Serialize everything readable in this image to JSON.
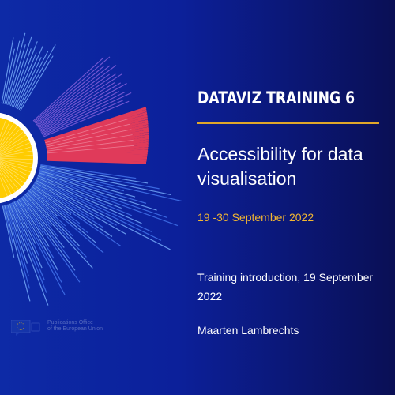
{
  "slide": {
    "series_label": "DATAVIZ TRAINING 6",
    "title": "Accessibility for data visualisation",
    "dates": "19 -30 September 2022",
    "intro": "Training introduction, 19 September 2022",
    "author": "Maarten Lambrechts"
  },
  "logo": {
    "line1": "Publications Office",
    "line2": "of the European Union"
  },
  "colors": {
    "background_left": "#0d2aa6",
    "background_right": "#0a0f55",
    "accent_red": "#e03a5a",
    "accent_yellow": "#ffcc00",
    "accent_gold": "#e0a72a",
    "ray_blue": "#3f6fe8",
    "ray_lightblue": "#6fa3f5",
    "ray_purple": "#7b5bd6"
  },
  "icons": [
    "eu-flag-icon"
  ]
}
